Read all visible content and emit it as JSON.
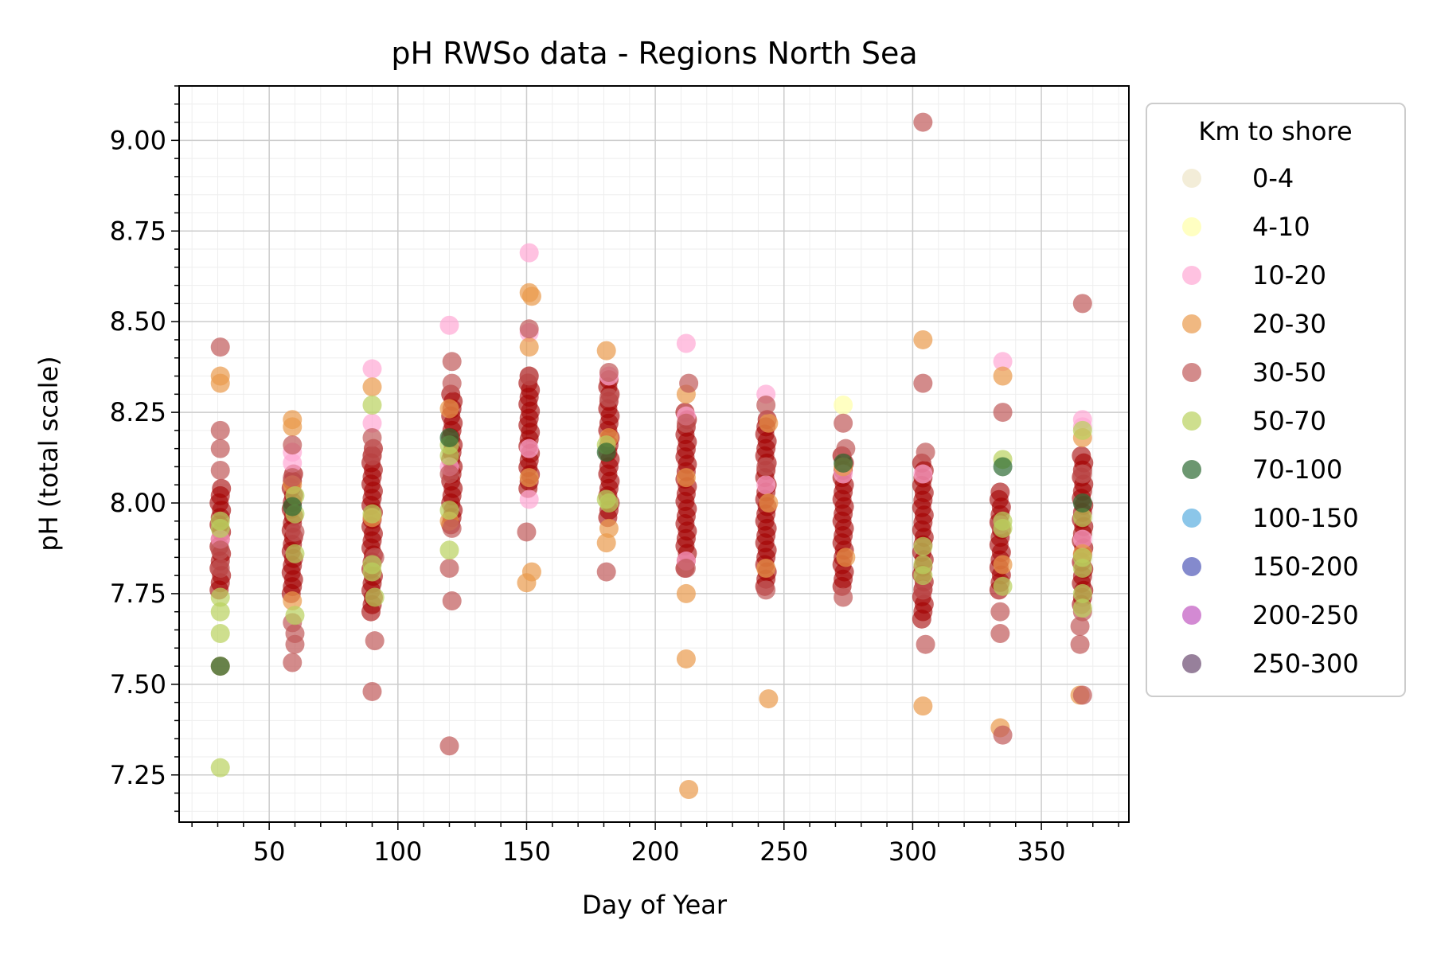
{
  "chart_data": {
    "type": "scatter",
    "title": "pH RWSo data - Regions North Sea",
    "xlabel": "Day of Year",
    "ylabel": "pH (total scale)",
    "xlim": [
      15,
      384
    ],
    "ylim": [
      7.12,
      9.15
    ],
    "xticks": [
      50,
      100,
      150,
      200,
      250,
      300,
      350
    ],
    "xtick_labels": [
      "50",
      "100",
      "150",
      "200",
      "250",
      "300",
      "350"
    ],
    "yticks": [
      7.25,
      7.5,
      7.75,
      8.0,
      8.25,
      8.5,
      8.75,
      9.0
    ],
    "ytick_labels": [
      "7.25",
      "7.50",
      "7.75",
      "8.00",
      "8.25",
      "8.50",
      "8.75",
      "9.00"
    ],
    "grid": true,
    "legend": {
      "title": "Km to shore",
      "placement": "outside-right"
    },
    "series": [
      {
        "name": "0-4",
        "color": "#eee5c8",
        "points": []
      },
      {
        "name": "4-10",
        "color": "#ffffa8",
        "points": [
          [
            273,
            8.27
          ]
        ]
      },
      {
        "name": "10-20",
        "color": "#ffa8d4",
        "points": [
          [
            31,
            7.9
          ],
          [
            59,
            8.14
          ],
          [
            59,
            8.11
          ],
          [
            90,
            8.37
          ],
          [
            90,
            8.22
          ],
          [
            120,
            8.49
          ],
          [
            120,
            8.1
          ],
          [
            151,
            8.69
          ],
          [
            151,
            8.47
          ],
          [
            151,
            8.15
          ],
          [
            151,
            8.01
          ],
          [
            182,
            8.35
          ],
          [
            212,
            8.44
          ],
          [
            212,
            8.24
          ],
          [
            212,
            7.84
          ],
          [
            243,
            8.3
          ],
          [
            243,
            8.05
          ],
          [
            273,
            8.08
          ],
          [
            304,
            8.08
          ],
          [
            335,
            8.39
          ],
          [
            366,
            8.23
          ],
          [
            366,
            8.21
          ],
          [
            366,
            7.9
          ]
        ]
      },
      {
        "name": "20-30",
        "color": "#e99a4c",
        "points": [
          [
            31,
            8.35
          ],
          [
            31,
            8.33
          ],
          [
            31,
            7.55
          ],
          [
            59,
            8.23
          ],
          [
            59,
            8.21
          ],
          [
            59,
            8.05
          ],
          [
            59,
            7.73
          ],
          [
            90,
            8.32
          ],
          [
            90,
            7.96
          ],
          [
            120,
            8.26
          ],
          [
            120,
            7.95
          ],
          [
            151,
            8.58
          ],
          [
            152,
            8.57
          ],
          [
            151,
            8.43
          ],
          [
            151,
            8.07
          ],
          [
            152,
            7.81
          ],
          [
            150,
            7.78
          ],
          [
            181,
            8.42
          ],
          [
            182,
            8.18
          ],
          [
            181,
            7.89
          ],
          [
            182,
            7.93
          ],
          [
            212,
            8.3
          ],
          [
            212,
            8.07
          ],
          [
            212,
            7.75
          ],
          [
            212,
            7.57
          ],
          [
            213,
            7.21
          ],
          [
            244,
            8.22
          ],
          [
            244,
            8.0
          ],
          [
            243,
            7.82
          ],
          [
            244,
            7.46
          ],
          [
            273,
            8.1
          ],
          [
            274,
            7.85
          ],
          [
            304,
            8.45
          ],
          [
            304,
            7.44
          ],
          [
            335,
            8.35
          ],
          [
            335,
            7.83
          ],
          [
            334,
            7.38
          ],
          [
            366,
            8.18
          ],
          [
            365,
            7.47
          ],
          [
            366,
            7.86
          ]
        ]
      },
      {
        "name": "30-50",
        "color": "#c05a5a",
        "points": [
          [
            31,
            8.43
          ],
          [
            31,
            8.2
          ],
          [
            31,
            8.15
          ],
          [
            31,
            8.09
          ],
          [
            31,
            7.87
          ],
          [
            31,
            7.82
          ],
          [
            59,
            8.16
          ],
          [
            59,
            8.07
          ],
          [
            60,
            7.92
          ],
          [
            59,
            7.67
          ],
          [
            60,
            7.64
          ],
          [
            60,
            7.61
          ],
          [
            59,
            7.56
          ],
          [
            90,
            8.18
          ],
          [
            90,
            8.13
          ],
          [
            91,
            7.85
          ],
          [
            91,
            7.62
          ],
          [
            90,
            7.48
          ],
          [
            121,
            8.39
          ],
          [
            121,
            8.33
          ],
          [
            120,
            8.08
          ],
          [
            121,
            7.93
          ],
          [
            120,
            7.82
          ],
          [
            121,
            7.73
          ],
          [
            120,
            7.33
          ],
          [
            151,
            8.48
          ],
          [
            151,
            8.35
          ],
          [
            150,
            7.92
          ],
          [
            182,
            8.36
          ],
          [
            182,
            8.29
          ],
          [
            181,
            7.81
          ],
          [
            213,
            8.33
          ],
          [
            212,
            8.22
          ],
          [
            212,
            7.82
          ],
          [
            243,
            8.27
          ],
          [
            243,
            8.1
          ],
          [
            243,
            7.76
          ],
          [
            273,
            8.22
          ],
          [
            274,
            8.15
          ],
          [
            273,
            7.74
          ],
          [
            304,
            9.05
          ],
          [
            304,
            8.33
          ],
          [
            305,
            8.14
          ],
          [
            304,
            7.76
          ],
          [
            305,
            7.61
          ],
          [
            335,
            8.25
          ],
          [
            334,
            7.94
          ],
          [
            334,
            7.7
          ],
          [
            334,
            7.64
          ],
          [
            335,
            7.36
          ],
          [
            366,
            8.55
          ],
          [
            366,
            8.08
          ],
          [
            366,
            7.7
          ],
          [
            365,
            7.66
          ],
          [
            365,
            7.61
          ],
          [
            366,
            7.47
          ]
        ]
      },
      {
        "name": "50-70",
        "color": "#b9d15e",
        "points": [
          [
            31,
            7.95
          ],
          [
            31,
            7.93
          ],
          [
            31,
            7.74
          ],
          [
            31,
            7.7
          ],
          [
            31,
            7.64
          ],
          [
            31,
            7.27
          ],
          [
            60,
            8.02
          ],
          [
            60,
            7.97
          ],
          [
            60,
            7.86
          ],
          [
            60,
            7.69
          ],
          [
            90,
            8.27
          ],
          [
            90,
            7.97
          ],
          [
            90,
            7.83
          ],
          [
            90,
            7.81
          ],
          [
            91,
            7.74
          ],
          [
            120,
            8.16
          ],
          [
            120,
            8.13
          ],
          [
            120,
            7.98
          ],
          [
            120,
            7.87
          ],
          [
            181,
            8.16
          ],
          [
            181,
            8.01
          ],
          [
            182,
            8.0
          ],
          [
            304,
            7.88
          ],
          [
            304,
            7.83
          ],
          [
            304,
            7.8
          ],
          [
            335,
            8.12
          ],
          [
            335,
            7.95
          ],
          [
            335,
            7.93
          ],
          [
            335,
            7.77
          ],
          [
            366,
            8.2
          ],
          [
            366,
            7.96
          ],
          [
            366,
            7.85
          ],
          [
            366,
            7.82
          ],
          [
            366,
            7.75
          ],
          [
            366,
            7.71
          ]
        ]
      },
      {
        "name": "70-100",
        "color": "#2e6b33",
        "points": [
          [
            181,
            8.14
          ],
          [
            31,
            7.55
          ],
          [
            59,
            7.99
          ],
          [
            120,
            8.18
          ],
          [
            273,
            8.11
          ],
          [
            335,
            8.1
          ],
          [
            366,
            8.0
          ]
        ]
      },
      {
        "name": "100-150",
        "color": "#5aaee0",
        "points": []
      },
      {
        "name": "150-200",
        "color": "#5058b8",
        "points": []
      },
      {
        "name": "200-250",
        "color": "#c058c0",
        "points": []
      },
      {
        "name": "250-300",
        "color": "#6b4a70",
        "points": []
      }
    ],
    "dense_cluster_color": "#a40000",
    "dense_clusters": [
      {
        "x": 31,
        "y_min": 7.76,
        "y_max": 8.04
      },
      {
        "x": 59,
        "y_min": 7.75,
        "y_max": 8.08
      },
      {
        "x": 90,
        "y_min": 7.7,
        "y_max": 8.15
      },
      {
        "x": 121,
        "y_min": 7.94,
        "y_max": 8.3
      },
      {
        "x": 151,
        "y_min": 8.04,
        "y_max": 8.35
      },
      {
        "x": 182,
        "y_min": 7.96,
        "y_max": 8.34
      },
      {
        "x": 212,
        "y_min": 7.82,
        "y_max": 8.25
      },
      {
        "x": 243,
        "y_min": 7.77,
        "y_max": 8.23
      },
      {
        "x": 273,
        "y_min": 7.77,
        "y_max": 8.13
      },
      {
        "x": 304,
        "y_min": 7.68,
        "y_max": 8.11
      },
      {
        "x": 334,
        "y_min": 7.76,
        "y_max": 8.03
      },
      {
        "x": 366,
        "y_min": 7.72,
        "y_max": 8.13
      }
    ]
  }
}
